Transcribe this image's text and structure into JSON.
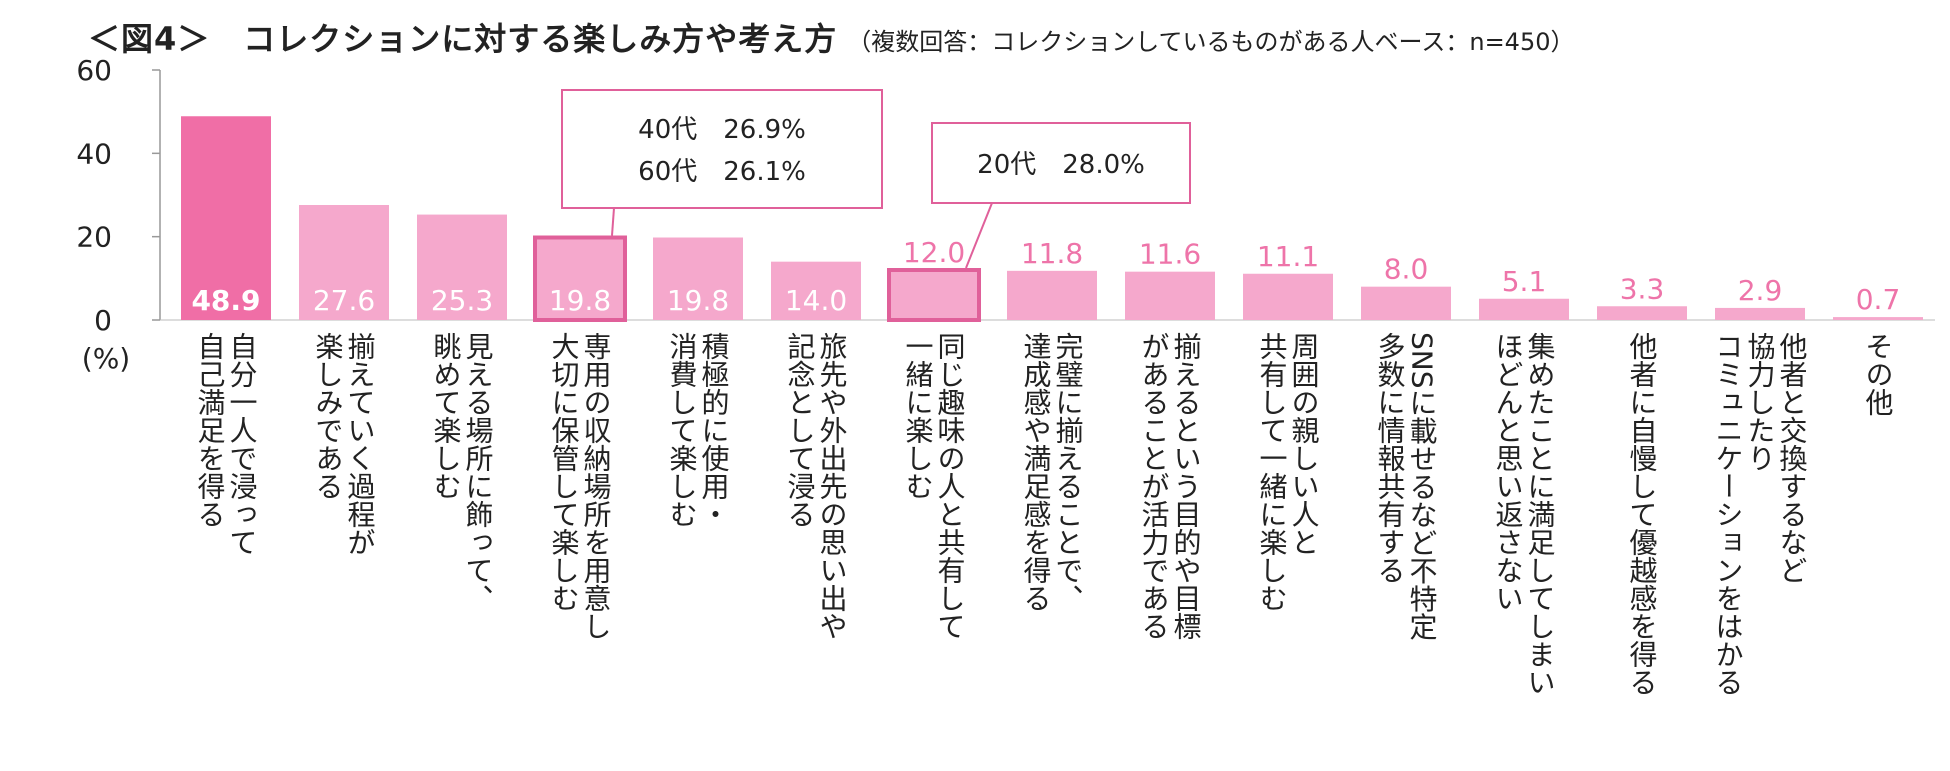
{
  "title": "＜図4＞　コレクションに対する楽しみ方や考え方",
  "subtitle": "（複数回答：コレクションしているものがある人ベース：n=450）",
  "colors": {
    "accent": "#f06ea6",
    "bar": "#f5a8cc",
    "label_light": "#ffffff",
    "label_accent": "#ee74a9",
    "callout_border": "#e0609a"
  },
  "chart_data": {
    "type": "bar",
    "title": "＜図4＞　コレクションに対する楽しみ方や考え方",
    "ylabel": "(%)",
    "ylim": [
      0,
      60
    ],
    "yticks": [
      0,
      20,
      40,
      60
    ],
    "grid": false,
    "categories": [
      "自分一人で浸って\n自己満足を得る",
      "揃えていく過程が\n楽しみである",
      "見える場所に飾って、\n眺めて楽しむ",
      "専用の収納場所を用意し\n大切に保管して楽しむ",
      "積極的に使用・\n消費して楽しむ",
      "旅先や外出先の思い出や\n記念として浸る",
      "同じ趣味の人と共有して\n一緒に楽しむ",
      "完璧に揃えることで、\n達成感や満足感を得る",
      "揃えるという目的や目標\nがあることが活力である",
      "周囲の親しい人と\n共有して一緒に楽しむ",
      "SNSに載せるなど不特定\n多数に情報共有する",
      "集めたことに満足してしまい\nほどんと思い返さない",
      "他者に自慢して優越感を得る",
      "他者と交換するなど\n協力したり\nコミュニケーションをはかる",
      "その他"
    ],
    "values": [
      48.9,
      27.6,
      25.3,
      19.8,
      19.8,
      14.0,
      12.0,
      11.8,
      11.6,
      11.1,
      8.0,
      5.1,
      3.3,
      2.9,
      0.7
    ],
    "value_labels": [
      "48.9",
      "27.6",
      "25.3",
      "19.8",
      "19.8",
      "14.0",
      "12.0",
      "11.8",
      "11.6",
      "11.1",
      "8.0",
      "5.1",
      "3.3",
      "2.9",
      "0.7"
    ],
    "highlighted": [
      0
    ],
    "outlined": [
      3,
      6
    ],
    "callouts": [
      {
        "lines": [
          "40代　26.9%",
          "60代　26.1%"
        ],
        "target": 3
      },
      {
        "lines": [
          "20代　28.0%"
        ],
        "target": 6
      }
    ]
  }
}
